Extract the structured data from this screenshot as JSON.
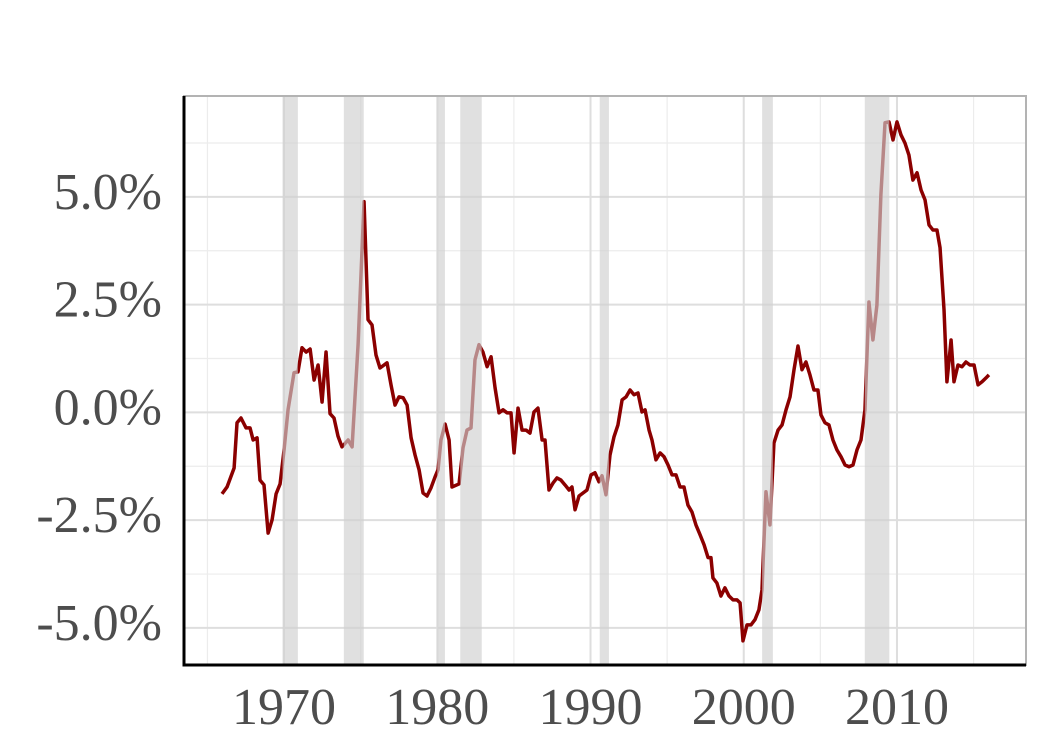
{
  "chart_data": {
    "type": "line",
    "x": [
      1965.95,
      1966.28,
      1966.74,
      1966.93,
      1967.19,
      1967.52,
      1967.78,
      1967.98,
      1968.24,
      1968.43,
      1968.69,
      1968.96,
      1969.22,
      1969.48,
      1969.74,
      1970.0,
      1970.26,
      1970.65,
      1970.91,
      1971.17,
      1971.44,
      1971.7,
      1971.96,
      1972.22,
      1972.48,
      1972.74,
      1973.0,
      1973.26,
      1973.52,
      1973.78,
      1974.18,
      1974.44,
      1974.83,
      1975.22,
      1975.48,
      1975.74,
      1976.0,
      1976.26,
      1976.72,
      1976.98,
      1977.24,
      1977.5,
      1977.77,
      1978.03,
      1978.29,
      1978.55,
      1978.81,
      1979.07,
      1979.33,
      1979.59,
      1979.85,
      1980.05,
      1980.24,
      1980.51,
      1980.77,
      1980.96,
      1981.42,
      1981.68,
      1981.94,
      1982.2,
      1982.46,
      1982.72,
      1982.98,
      1983.25,
      1983.51,
      1983.77,
      1984.03,
      1984.29,
      1984.55,
      1984.81,
      1985.01,
      1985.27,
      1985.53,
      1985.79,
      1986.05,
      1986.31,
      1986.57,
      1986.84,
      1987.03,
      1987.29,
      1987.55,
      1987.81,
      1988.07,
      1988.33,
      1988.6,
      1988.79,
      1988.99,
      1989.25,
      1989.51,
      1989.77,
      1990.03,
      1990.29,
      1990.55,
      1990.75,
      1991.01,
      1991.27,
      1991.53,
      1991.79,
      1992.06,
      1992.32,
      1992.58,
      1992.84,
      1993.1,
      1993.36,
      1993.56,
      1993.82,
      1994.01,
      1994.27,
      1994.54,
      1994.8,
      1995.06,
      1995.32,
      1995.58,
      1995.84,
      1996.1,
      1996.36,
      1996.62,
      1996.88,
      1997.15,
      1997.41,
      1997.67,
      1997.86,
      1997.99,
      1998.25,
      1998.51,
      1998.77,
      1999.04,
      1999.3,
      1999.56,
      1999.76,
      1999.95,
      2000.21,
      2000.47,
      2000.73,
      2000.99,
      2001.19,
      2001.45,
      2001.71,
      2001.97,
      2002.24,
      2002.5,
      2002.76,
      2003.02,
      2003.28,
      2003.54,
      2003.8,
      2004.06,
      2004.32,
      2004.58,
      2004.84,
      2005.04,
      2005.3,
      2005.56,
      2005.82,
      2006.08,
      2006.35,
      2006.61,
      2006.87,
      2007.13,
      2007.39,
      2007.65,
      2007.91,
      2008.17,
      2008.43,
      2008.69,
      2008.95,
      2009.22,
      2009.48,
      2009.74,
      2010.0,
      2010.26,
      2010.52,
      2010.78,
      2011.04,
      2011.31,
      2011.57,
      2011.83,
      2012.09,
      2012.35,
      2012.61,
      2012.81,
      2013.07,
      2013.26,
      2013.53,
      2013.72,
      2013.98,
      2014.24,
      2014.5,
      2014.76,
      2015.03,
      2015.29,
      2015.55,
      2015.81,
      2016.0
    ],
    "values": [
      -1.89,
      -1.73,
      -1.29,
      -0.24,
      -0.13,
      -0.36,
      -0.36,
      -0.64,
      -0.59,
      -1.57,
      -1.68,
      -2.8,
      -2.49,
      -1.89,
      -1.66,
      -0.87,
      0.06,
      0.92,
      0.94,
      1.5,
      1.4,
      1.47,
      0.75,
      1.1,
      0.24,
      1.4,
      -0.03,
      -0.13,
      -0.55,
      -0.8,
      -0.64,
      -0.8,
      1.57,
      4.89,
      2.15,
      2.03,
      1.33,
      1.03,
      1.15,
      0.64,
      0.17,
      0.36,
      0.34,
      0.17,
      -0.59,
      -0.99,
      -1.33,
      -1.87,
      -1.94,
      -1.75,
      -1.5,
      -1.33,
      -0.64,
      -0.27,
      -0.64,
      -1.73,
      -1.66,
      -0.82,
      -0.41,
      -0.36,
      1.22,
      1.57,
      1.4,
      1.06,
      1.29,
      0.57,
      -0.01,
      0.06,
      -0.01,
      -0.01,
      -0.94,
      0.1,
      -0.41,
      -0.41,
      -0.48,
      0.01,
      0.1,
      -0.64,
      -0.64,
      -1.8,
      -1.64,
      -1.52,
      -1.57,
      -1.68,
      -1.8,
      -1.73,
      -2.26,
      -1.94,
      -1.87,
      -1.8,
      -1.45,
      -1.4,
      -1.61,
      -1.47,
      -1.91,
      -0.99,
      -0.57,
      -0.29,
      0.29,
      0.36,
      0.52,
      0.41,
      0.45,
      0.01,
      0.06,
      -0.41,
      -0.64,
      -1.1,
      -0.94,
      -1.03,
      -1.22,
      -1.45,
      -1.45,
      -1.73,
      -1.73,
      -2.15,
      -2.31,
      -2.61,
      -2.84,
      -3.07,
      -3.37,
      -3.37,
      -3.84,
      -3.96,
      -4.26,
      -4.07,
      -4.26,
      -4.35,
      -4.35,
      -4.42,
      -5.3,
      -4.93,
      -4.93,
      -4.81,
      -4.58,
      -4.12,
      -1.84,
      -2.61,
      -0.71,
      -0.41,
      -0.29,
      0.06,
      0.36,
      0.99,
      1.54,
      0.99,
      1.17,
      0.87,
      0.52,
      0.52,
      -0.06,
      -0.24,
      -0.29,
      -0.64,
      -0.87,
      -1.03,
      -1.22,
      -1.26,
      -1.22,
      -0.87,
      -0.64,
      0.06,
      2.56,
      1.68,
      2.49,
      5.05,
      6.72,
      6.74,
      6.32,
      6.74,
      6.44,
      6.25,
      5.97,
      5.39,
      5.56,
      5.16,
      4.93,
      4.35,
      4.23,
      4.23,
      3.82,
      2.38,
      0.71,
      1.68,
      0.71,
      1.1,
      1.06,
      1.17,
      1.1,
      1.1,
      0.64,
      0.71,
      0.8,
      0.87
    ],
    "color": "#8b0000",
    "xlim": [
      1963.47,
      2018.42
    ],
    "ylim": [
      -5.86,
      7.34
    ],
    "xticks": [
      1970,
      1980,
      1990,
      2000,
      2010
    ],
    "minor_xticks": [
      1965,
      1975,
      1985,
      1995,
      2005,
      2015
    ],
    "yticks": [
      {
        "value": -5,
        "label": "-5.0%"
      },
      {
        "value": -2.5,
        "label": "-2.5%"
      },
      {
        "value": 0,
        "label": "0.0%"
      },
      {
        "value": 2.5,
        "label": "2.5%"
      },
      {
        "value": 5,
        "label": "5.0%"
      }
    ],
    "minor_yticks": [
      -3.75,
      -1.25,
      1.25,
      3.75,
      6.25
    ],
    "grid": true,
    "shaded_ranges": [
      [
        1969.9,
        1970.9
      ],
      [
        1973.9,
        1975.2
      ],
      [
        1980.0,
        1980.5
      ],
      [
        1981.5,
        1982.9
      ],
      [
        1990.6,
        1991.2
      ],
      [
        2001.2,
        2001.9
      ],
      [
        2007.9,
        2009.5
      ]
    ],
    "shade_color": "#cfcfcf"
  }
}
